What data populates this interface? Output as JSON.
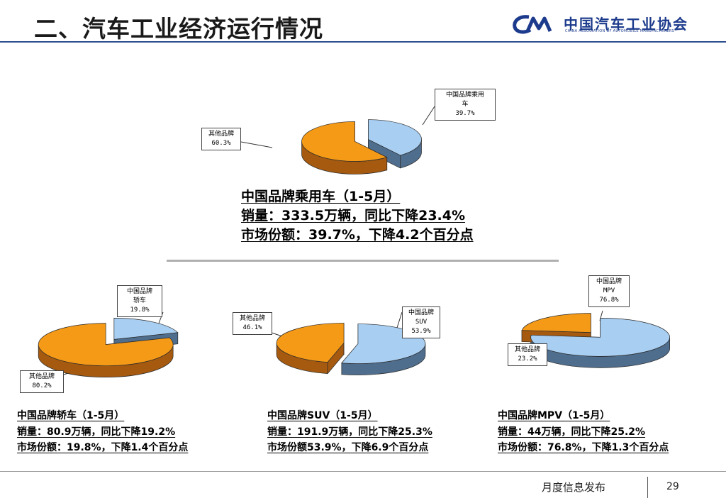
{
  "header": {
    "title": "二、汽车工业经济运行情况",
    "org_name": "中国汽车工业协会",
    "org_name_en": "CHINA ASSOCIATION OF AUTOMOBILE MANUFACTURERS"
  },
  "colors": {
    "china_brand": "#a8cef2",
    "china_brand_side": "#4f6d8c",
    "other_brand": "#f59a17",
    "other_brand_side": "#a55a10",
    "title_rule": "#2e4e8f"
  },
  "summaries": {
    "passenger": {
      "title": "中国品牌乘用车（1-5月）",
      "sales": "销量：333.5万辆，同比下降23.4%",
      "share": "市场份额：39.7%，下降4.2个百分点"
    },
    "sedan": {
      "title": "中国品牌轿车（1-5月）",
      "sales": "销量：80.9万辆，同比下降19.2%",
      "share": "市场份额：19.8%，下降1.4个百分点"
    },
    "suv": {
      "title": "中国品牌SUV（1-5月）",
      "sales": "销量：191.9万辆，同比下降25.3%",
      "share": "市场份额53.9%，下降6.9个百分点"
    },
    "mpv": {
      "title": "中国品牌MPV（1-5月）",
      "sales": "销量：44万辆，同比下降25.2%",
      "share": "市场份额：76.8%，下降1.3个百分点"
    }
  },
  "chart_data": [
    {
      "type": "pie",
      "categories": [
        "中国品牌乘用车",
        "其他品牌"
      ],
      "values": [
        39.7,
        60.3
      ],
      "labels": [
        "中国品牌乘用\n车\n39.7%",
        "其他品牌\n60.3%"
      ]
    },
    {
      "type": "pie",
      "categories": [
        "中国品牌轿车",
        "其他品牌"
      ],
      "values": [
        19.8,
        80.2
      ],
      "labels": [
        "中国品牌\n轿车\n19.8%",
        "其他品牌\n80.2%"
      ]
    },
    {
      "type": "pie",
      "categories": [
        "中国品牌SUV",
        "其他品牌"
      ],
      "values": [
        53.9,
        46.1
      ],
      "labels": [
        "中国品牌\nSUV\n53.9%",
        "其他品牌\n46.1%"
      ]
    },
    {
      "type": "pie",
      "categories": [
        "中国品牌MPV",
        "其他品牌"
      ],
      "values": [
        76.8,
        23.2
      ],
      "labels": [
        "中国品牌\nMPV\n76.8%",
        "其他品牌\n23.2%"
      ]
    }
  ],
  "footer": {
    "label": "月度信息发布",
    "page": "29"
  }
}
